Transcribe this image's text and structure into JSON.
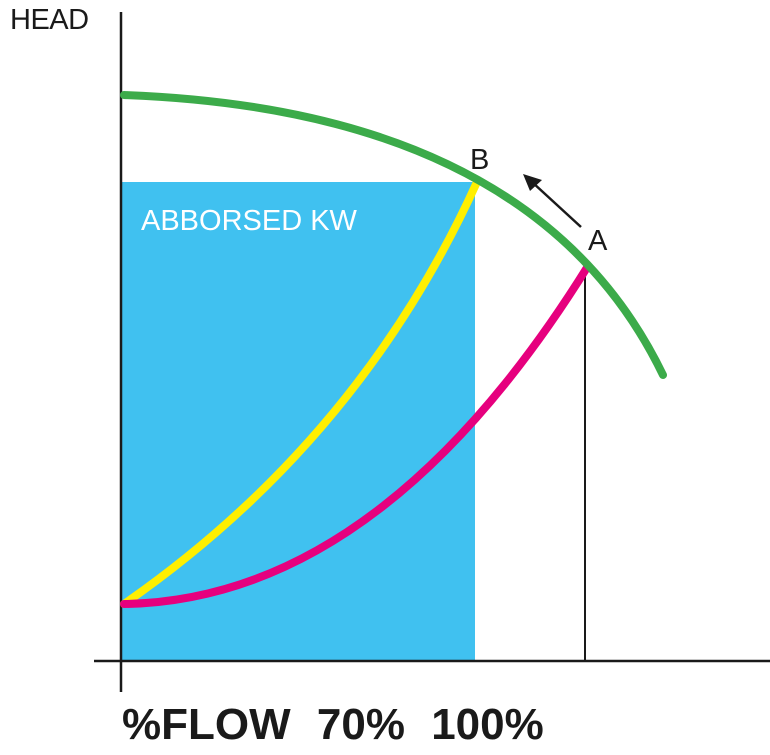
{
  "y_axis_label": "HEAD",
  "region_label": "ABBORSED KW",
  "point_a_label": "A",
  "point_b_label": "B",
  "x_caption": {
    "label": "%FLOW",
    "value_b": "70%",
    "value_a": "100%"
  },
  "colors": {
    "pump_curve": "#3cab4a",
    "system_curve_original": "#e6007e",
    "system_curve_throttled": "#ffef00",
    "absorbed_power_region": "#40c1f0",
    "axes": "#1a1a1a",
    "region_text": "#ffffff"
  }
}
